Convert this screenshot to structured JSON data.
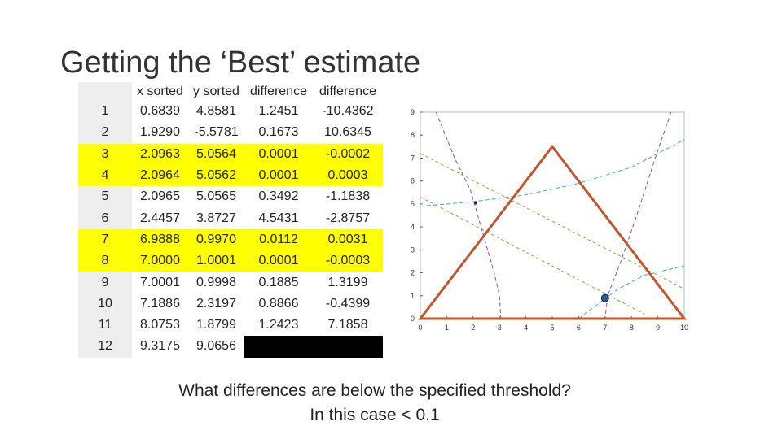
{
  "slide": {
    "title": "Getting the ‘Best’ estimate",
    "question_line1": "What differences are below the specified threshold?",
    "question_line2": "In this case < 0.1"
  },
  "table": {
    "headers": [
      "",
      "x sorted",
      "y sorted",
      "difference",
      "difference"
    ],
    "rows": [
      {
        "idx": "1",
        "x": "0.6839",
        "y": "4.8581",
        "d1": "1.2451",
        "d2": "-10.4362",
        "highlight": false
      },
      {
        "idx": "2",
        "x": "1.9290",
        "y": "-5.5781",
        "d1": "0.1673",
        "d2": "10.6345",
        "highlight": false
      },
      {
        "idx": "3",
        "x": "2.0963",
        "y": "5.0564",
        "d1": "0.0001",
        "d2": "-0.0002",
        "highlight": true
      },
      {
        "idx": "4",
        "x": "2.0964",
        "y": "5.0562",
        "d1": "0.0001",
        "d2": "0.0003",
        "highlight": true
      },
      {
        "idx": "5",
        "x": "2.0965",
        "y": "5.0565",
        "d1": "0.3492",
        "d2": "-1.1838",
        "highlight": false
      },
      {
        "idx": "6",
        "x": "2.4457",
        "y": "3.8727",
        "d1": "4.5431",
        "d2": "-2.8757",
        "highlight": false
      },
      {
        "idx": "7",
        "x": "6.9888",
        "y": "0.9970",
        "d1": "0.0112",
        "d2": "0.0031",
        "highlight": true
      },
      {
        "idx": "8",
        "x": "7.0000",
        "y": "1.0001",
        "d1": "0.0001",
        "d2": "-0.0003",
        "highlight": true
      },
      {
        "idx": "9",
        "x": "7.0001",
        "y": "0.9998",
        "d1": "0.1885",
        "d2": "1.3199",
        "highlight": false
      },
      {
        "idx": "10",
        "x": "7.1886",
        "y": "2.3197",
        "d1": "0.8866",
        "d2": "-0.4399",
        "highlight": false
      },
      {
        "idx": "11",
        "x": "8.0753",
        "y": "1.8799",
        "d1": "1.2423",
        "d2": "7.1858",
        "highlight": false
      },
      {
        "idx": "12",
        "x": "9.3175",
        "y": "9.0656",
        "d1": "",
        "d2": "",
        "highlight": false,
        "blacked": true
      }
    ]
  },
  "chart_data": {
    "type": "line",
    "xlim": [
      0,
      10
    ],
    "ylim": [
      0,
      9
    ],
    "x_ticks": [
      "0",
      "1",
      "2",
      "3",
      "4",
      "5",
      "6",
      "7",
      "8",
      "9",
      "10"
    ],
    "y_ticks": [
      "0",
      "1",
      "2",
      "3",
      "4",
      "5",
      "6",
      "7",
      "8",
      "9"
    ],
    "triangle": {
      "color": "#c0562a",
      "vertices": [
        [
          0,
          0
        ],
        [
          5,
          7.5
        ],
        [
          10,
          0
        ]
      ]
    },
    "marked_points": [
      [
        2.1,
        5.05
      ],
      [
        7,
        0.9
      ]
    ],
    "colors": {
      "purple": "#8e4fa0",
      "cyan": "#3aa7d6",
      "olive": "#9aa23a",
      "dot": "#2a5a9a"
    }
  }
}
